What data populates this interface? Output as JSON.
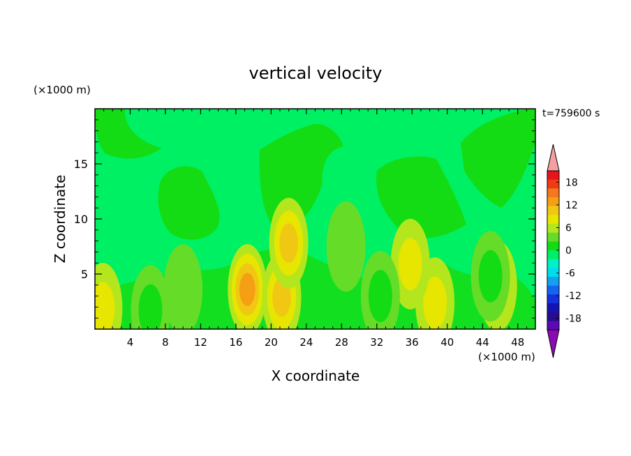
{
  "chart_data": {
    "type": "heatmap",
    "title": "vertical velocity",
    "xlabel": "X coordinate",
    "ylabel": "Z coordinate",
    "x_unit": "(×1000 m)",
    "y_unit": "(×1000 m)",
    "time_label": "t=759600 s",
    "xlim": [
      0,
      50
    ],
    "ylim": [
      0,
      20
    ],
    "x_ticks": [
      4,
      8,
      12,
      16,
      20,
      24,
      28,
      32,
      36,
      40,
      44,
      48
    ],
    "x_tick_labels": [
      "4",
      "8",
      "12",
      "16",
      "20",
      "24",
      "28",
      "32",
      "36",
      "40",
      "44",
      "48"
    ],
    "y_ticks": [
      5,
      10,
      15
    ],
    "y_tick_labels": [
      "5",
      "10",
      "15"
    ],
    "colorbar": {
      "labels": [
        18,
        12,
        6,
        0,
        -6,
        -12,
        -18
      ],
      "label_text": [
        "18",
        "12",
        "6",
        "0",
        "-6",
        "-12",
        "-18"
      ],
      "levels": [
        21,
        18,
        15,
        12,
        9,
        6,
        3,
        0,
        -3,
        -6,
        -9,
        -12,
        -15,
        -18,
        -21
      ],
      "colors": [
        "#e8141c",
        "#f03c14",
        "#f5781e",
        "#f5a014",
        "#f0c814",
        "#e6e600",
        "#b4e61e",
        "#64dc28",
        "#14dc14",
        "#00f064",
        "#00f0c8",
        "#00dcf0",
        "#14a0f0",
        "#1464f0",
        "#1432dc",
        "#1414b4",
        "#280a8c",
        "#5a0ab4"
      ],
      "over_color": "#f5a0a0",
      "under_color": "#8c0ab4"
    },
    "features": [
      {
        "x": 17.3,
        "z": 3.6,
        "value": 13
      },
      {
        "x": 21.2,
        "z": 2.9,
        "value": 9
      },
      {
        "x": 22.0,
        "z": 7.8,
        "value": 8
      },
      {
        "x": 38.6,
        "z": 2.4,
        "value": 6
      },
      {
        "x": 35.8,
        "z": 5.9,
        "value": 5
      },
      {
        "x": 0.9,
        "z": 1.9,
        "value": 6
      },
      {
        "x": 45.7,
        "z": 3.9,
        "value": 7
      },
      {
        "x": 32.4,
        "z": 3.0,
        "value": -7
      },
      {
        "x": 44.9,
        "z": 4.8,
        "value": -7
      },
      {
        "x": 6.3,
        "z": 1.7,
        "value": -5
      },
      {
        "x": 10.0,
        "z": 3.6,
        "value": -4
      },
      {
        "x": 28.5,
        "z": 7.5,
        "value": -3
      }
    ]
  }
}
